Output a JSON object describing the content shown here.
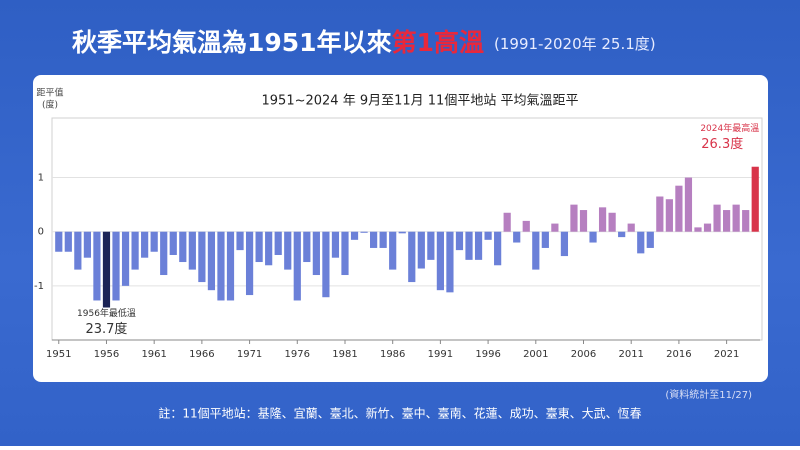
{
  "slide": {
    "title": "秋季平均氣溫為1951年以來",
    "title_highlight": "第1高溫",
    "subtitle": "(1991-2020年 25.1度)",
    "source": "(資料統計至11/27)",
    "footnote": "註：11個平地站：基隆、宜蘭、臺北、新竹、臺中、臺南、花蓮、成功、臺東、大武、恆春"
  },
  "chart_data": {
    "type": "bar",
    "title": "1951~2024 年  9月至11月 11個平地站 平均氣溫距平",
    "y_label": "距平值",
    "y_unit": "(度)",
    "categories": [
      "1951",
      null,
      null,
      null,
      null,
      "1956",
      null,
      null,
      null,
      null,
      "1961",
      null,
      null,
      null,
      null,
      "1966",
      null,
      null,
      null,
      null,
      "1971",
      null,
      null,
      null,
      null,
      "1976",
      null,
      null,
      null,
      null,
      "1981",
      null,
      null,
      null,
      null,
      "1986",
      null,
      null,
      null,
      null,
      "1991",
      null,
      null,
      null,
      null,
      "1996",
      null,
      null,
      null,
      null,
      "2001",
      null,
      null,
      null,
      null,
      "2006",
      null,
      null,
      null,
      null,
      "2011",
      null,
      null,
      null,
      null,
      "2016",
      null,
      null,
      null,
      null,
      "2021",
      null,
      null,
      null
    ],
    "values": [
      -0.37,
      -0.37,
      -0.7,
      -0.48,
      -1.27,
      -1.4,
      -1.27,
      -1.0,
      -0.7,
      -0.48,
      -0.37,
      -0.8,
      -0.43,
      -0.56,
      -0.7,
      -0.93,
      -1.08,
      -1.27,
      -1.27,
      -0.34,
      -1.17,
      -0.56,
      -0.62,
      -0.43,
      -0.7,
      -1.27,
      -0.56,
      -0.8,
      -1.21,
      -0.48,
      -0.8,
      -0.15,
      -0.02,
      -0.3,
      -0.3,
      -0.7,
      -0.03,
      -0.93,
      -0.68,
      -0.52,
      -1.08,
      -1.12,
      -0.34,
      -0.52,
      -0.52,
      -0.15,
      -0.62,
      0.35,
      -0.2,
      0.2,
      -0.7,
      -0.3,
      0.15,
      -0.45,
      0.5,
      0.4,
      -0.2,
      0.45,
      0.35,
      -0.1,
      0.15,
      -0.4,
      -0.3,
      0.65,
      0.6,
      0.85,
      1.0,
      0.08,
      0.15,
      0.5,
      0.4,
      0.5,
      0.4,
      1.2
    ],
    "negative_color": "#6b80d8",
    "positive_color": "#b67fc0",
    "ylim": [
      -2,
      2.1
    ],
    "yticks": [
      -1,
      0,
      1
    ],
    "annotations": [
      {
        "year": 1956,
        "label": "1956年最低溫",
        "value_label": "23.7度",
        "color": "#1c2456"
      },
      {
        "year": 2024,
        "label": "2024年最高溫",
        "value_label": "26.3度",
        "color": "#d8344a"
      }
    ]
  }
}
